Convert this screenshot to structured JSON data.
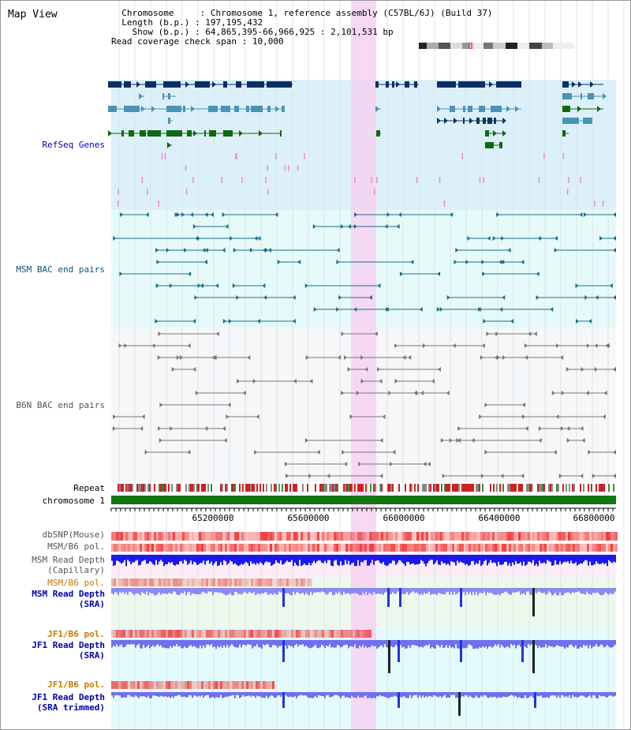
{
  "header": {
    "title": "Map View",
    "chromosome_key": "Chromosome",
    "chromosome_val": "Chromosome 1, reference assembly (C57BL/6J) (Build 37)",
    "length_key": "Length (b.p.)",
    "length_val": "197,195,432",
    "show_key": "Show (b.p.)",
    "show_val": "64,865,395-66,966,925 : 2,101,531 bp",
    "coverage_key": "Read coverage check span",
    "coverage_val": "10,000"
  },
  "tracks": {
    "refseq": "RefSeq Genes",
    "msm_bac": "MSM BAC end pairs",
    "b6n_bac": "B6N BAC end pairs",
    "repeat": "Repeat",
    "chromosome": "chromosome 1",
    "dbsnp": "dbSNP(Mouse)",
    "msm_b6_pol_1": "MSM/B6 pol.",
    "msm_read_depth_cap_1": "MSM Read Depth",
    "msm_read_depth_cap_2": "(Capillary)",
    "msm_b6_pol_2": "MSM/B6 pol.",
    "msm_read_depth_sra_1": "MSM Read Depth",
    "msm_read_depth_sra_2": "(SRA)",
    "jf1_b6_pol_1": "JF1/B6 pol.",
    "jf1_read_depth_sra_1": "JF1 Read Depth",
    "jf1_read_depth_sra_2": "(SRA)",
    "jf1_b6_pol_2": "JF1/B6 pol.",
    "jf1_read_depth_trim_1": "JF1 Read Depth",
    "jf1_read_depth_trim_2": "(SRA trimmed)"
  },
  "ruler": {
    "ticks": [
      "65200000",
      "65600000",
      "66000000",
      "66400000",
      "66800000"
    ]
  },
  "colors": {
    "refseq_bg": "#dcf0fa",
    "msm_bg": "#e6fafa",
    "b6n_bg": "#f5f7f9",
    "highlight": "#f6d2f1",
    "gene_navy": "#0a2f66",
    "gene_teal": "#4a93b5",
    "gene_green": "#0e6a10",
    "chrom_green": "#117711",
    "msm_label": "#0a5577",
    "b6n_label": "#555555",
    "sra_label": "#0000aa",
    "pol_label": "#cc7700"
  }
}
